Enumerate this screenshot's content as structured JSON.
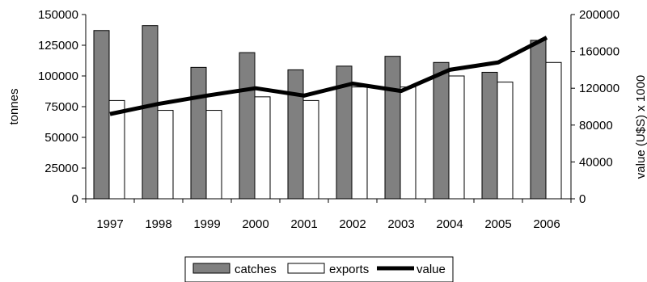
{
  "chart_data": {
    "type": "bar",
    "categories": [
      "1997",
      "1998",
      "1999",
      "2000",
      "2001",
      "2002",
      "2003",
      "2004",
      "2005",
      "2006"
    ],
    "series": [
      {
        "name": "catches",
        "kind": "bar",
        "axis": "left",
        "color": "#808080",
        "values": [
          137000,
          141000,
          107000,
          119000,
          105000,
          108000,
          116000,
          111000,
          103000,
          129000
        ]
      },
      {
        "name": "exports",
        "kind": "bar",
        "axis": "left",
        "color": "#ffffff",
        "values": [
          80000,
          72000,
          72000,
          83000,
          80000,
          91000,
          91000,
          100000,
          95000,
          111000
        ]
      },
      {
        "name": "value",
        "kind": "line",
        "axis": "right",
        "color": "#000000",
        "values": [
          92000,
          103000,
          112000,
          120000,
          112000,
          125000,
          117000,
          140000,
          148000,
          175000
        ]
      }
    ],
    "xlabel": "",
    "ylabel": "tonnes",
    "y2label": "value (U$S) x 1000",
    "ylim": [
      0,
      150000
    ],
    "y2lim": [
      0,
      200000
    ],
    "yticks": [
      0,
      25000,
      50000,
      75000,
      100000,
      125000,
      150000
    ],
    "y2ticks": [
      0,
      40000,
      80000,
      120000,
      160000,
      200000
    ],
    "grid": false,
    "legend": "bottom"
  }
}
